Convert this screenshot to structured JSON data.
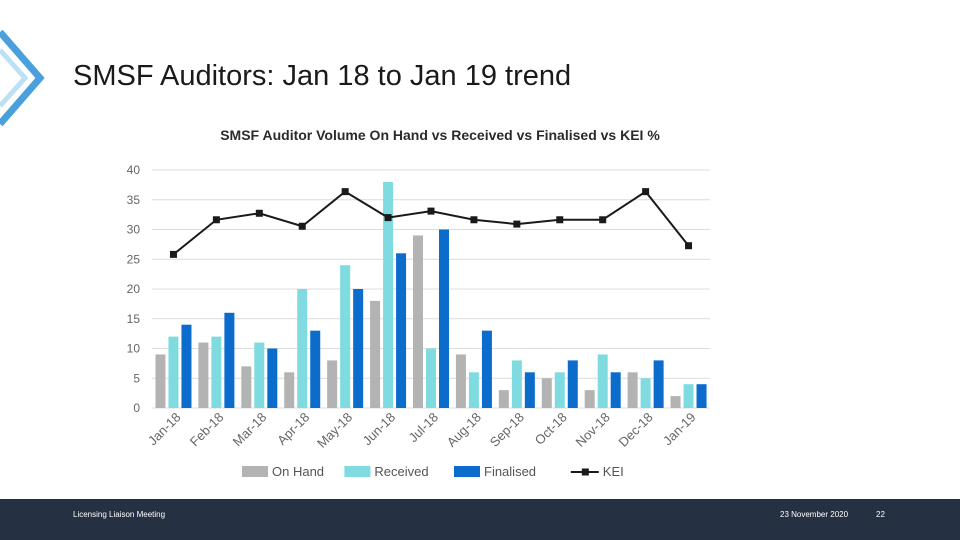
{
  "slide": {
    "title": "SMSF Auditors: Jan 18 to Jan 19 trend"
  },
  "footer": {
    "left_text": "Licensing Liaison Meeting",
    "date": "23 November 2020",
    "page_number": "22"
  },
  "colors": {
    "on_hand": "#b3b3b3",
    "received": "#7fdbe0",
    "finalised": "#0b6ccb",
    "kei": "#1a1a1a",
    "footer_bg": "#253142",
    "chevron": "#2a8fd6"
  },
  "chart_data": {
    "type": "bar",
    "title": "SMSF Auditor Volume On Hand vs Received vs Finalised vs KEI %",
    "categories": [
      "Jan-18",
      "Feb-18",
      "Mar-18",
      "Apr-18",
      "May-18",
      "Jun-18",
      "Jul-18",
      "Aug-18",
      "Sep-18",
      "Oct-18",
      "Nov-18",
      "Dec-18",
      "Jan-19"
    ],
    "series": [
      {
        "name": "On Hand",
        "type": "bar",
        "axis": "left",
        "values": [
          9,
          11,
          7,
          6,
          8,
          18,
          29,
          9,
          3,
          5,
          3,
          6,
          2
        ]
      },
      {
        "name": "Received",
        "type": "bar",
        "axis": "left",
        "values": [
          12,
          12,
          11,
          20,
          24,
          38,
          10,
          6,
          8,
          6,
          9,
          5,
          4
        ]
      },
      {
        "name": "Finalised",
        "type": "bar",
        "axis": "left",
        "values": [
          14,
          16,
          10,
          13,
          20,
          26,
          30,
          13,
          6,
          8,
          6,
          8,
          4
        ]
      },
      {
        "name": "KEI",
        "type": "line",
        "axis": "right",
        "values": [
          71,
          87,
          90,
          84,
          100,
          88,
          91,
          87,
          85,
          87,
          87,
          100,
          75
        ]
      }
    ],
    "ylim": [
      0,
      40
    ],
    "yticks": [
      "0",
      "5",
      "10",
      "15",
      "20",
      "25",
      "30",
      "35",
      "40"
    ],
    "y2lim": [
      0,
      110
    ],
    "y2ticks": [
      "0%",
      "20%",
      "40%",
      "60%",
      "80%",
      "100%"
    ],
    "grid": true,
    "legend_position": "bottom"
  }
}
